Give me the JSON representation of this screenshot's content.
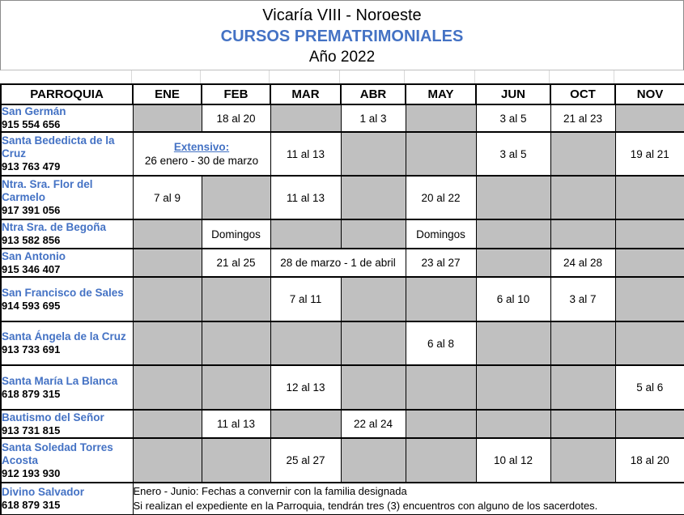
{
  "title": {
    "line1": "Vicaría VIII - Noroeste",
    "line2": "CURSOS PREMATRIMONIALES",
    "line3": "Año 2022"
  },
  "colors": {
    "accent_blue": "#4472C4",
    "empty_cell_gray": "#C0C0C0",
    "grid_black": "#000000"
  },
  "table": {
    "parish_header": "PARROQUIA",
    "months": [
      "ENE",
      "FEB",
      "MAR",
      "ABR",
      "MAY",
      "JUN",
      "OCT",
      "NOV"
    ],
    "rows": [
      {
        "name": "San Germán",
        "phone": "915 554 656",
        "cells": [
          {
            "gray": true
          },
          {
            "text": "18 al 20"
          },
          {
            "gray": true
          },
          {
            "text": "1 al 3"
          },
          {
            "gray": true
          },
          {
            "text": "3 al 5"
          },
          {
            "text": "21 al 23"
          },
          {
            "gray": true
          }
        ]
      },
      {
        "name": "Santa Bededicta de la Cruz",
        "phone": "913 763 479",
        "cells": [
          {
            "span": 2,
            "lines": [
              {
                "text": "Extensivo: ",
                "cls": "ext-l1"
              },
              {
                "text": "26 enero - 30 de marzo",
                "cls": "merge-l2"
              }
            ]
          },
          {
            "text": "11 al 13"
          },
          {
            "gray": true
          },
          {
            "gray": true
          },
          {
            "text": "3 al 5"
          },
          {
            "gray": true
          },
          {
            "text": "19 al 21"
          }
        ]
      },
      {
        "name": "Ntra. Sra. Flor del Carmelo",
        "phone": "917 391 056",
        "cells": [
          {
            "text": "7 al 9"
          },
          {
            "gray": true
          },
          {
            "text": "11 al 13"
          },
          {
            "gray": true
          },
          {
            "text": "20 al 22"
          },
          {
            "gray": true
          },
          {
            "gray": true
          },
          {
            "gray": true
          }
        ]
      },
      {
        "name": "Ntra Sra. de Begoña",
        "phone": "913 582 856",
        "cells": [
          {
            "gray": true
          },
          {
            "text": "Domingos"
          },
          {
            "gray": true
          },
          {
            "gray": true
          },
          {
            "text": "Domingos"
          },
          {
            "gray": true
          },
          {
            "gray": true
          },
          {
            "gray": true
          }
        ]
      },
      {
        "name": "San Antonio",
        "phone": "915 346 407",
        "cells": [
          {
            "gray": true
          },
          {
            "text": "21 al 25"
          },
          {
            "span": 2,
            "text": "28 de marzo - 1 de abril"
          },
          {
            "text": "23 al 27"
          },
          {
            "gray": true
          },
          {
            "text": "24 al 28"
          },
          {
            "gray": true
          }
        ]
      },
      {
        "name": "San Francisco de Sales",
        "phone": "914 593 695",
        "cells": [
          {
            "gray": true
          },
          {
            "gray": true
          },
          {
            "text": "7 al 11"
          },
          {
            "gray": true
          },
          {
            "gray": true
          },
          {
            "text": "6 al 10"
          },
          {
            "text": "3 al 7"
          },
          {
            "gray": true
          }
        ]
      },
      {
        "name": "Santa Ángela de la Cruz",
        "phone": "913 733 691",
        "cells": [
          {
            "gray": true
          },
          {
            "gray": true
          },
          {
            "gray": true
          },
          {
            "gray": true
          },
          {
            "text": "6 al 8"
          },
          {
            "gray": true
          },
          {
            "gray": true
          },
          {
            "gray": true
          }
        ]
      },
      {
        "name": "Santa María La Blanca",
        "phone": "618 879 315",
        "cells": [
          {
            "gray": true
          },
          {
            "gray": true
          },
          {
            "text": "12 al 13"
          },
          {
            "gray": true
          },
          {
            "gray": true
          },
          {
            "gray": true
          },
          {
            "gray": true
          },
          {
            "text": "5 al 6"
          }
        ]
      },
      {
        "name": "Bautismo del Señor",
        "phone": "913 731 815",
        "cells": [
          {
            "gray": true
          },
          {
            "text": "11 al 13"
          },
          {
            "gray": true
          },
          {
            "text": "22 al 24"
          },
          {
            "gray": true
          },
          {
            "gray": true
          },
          {
            "gray": true
          },
          {
            "gray": true
          }
        ]
      },
      {
        "name": "Santa Soledad Torres Acosta",
        "phone": "912 193 930",
        "cells": [
          {
            "gray": true
          },
          {
            "gray": true
          },
          {
            "text": "25 al 27"
          },
          {
            "gray": true
          },
          {
            "gray": true
          },
          {
            "text": "10 al 12"
          },
          {
            "gray": true
          },
          {
            "text": "18 al 20"
          }
        ]
      },
      {
        "name": "Divino Salvador",
        "phone": "618 879 315",
        "note": [
          "Enero - Junio: Fechas a convernir con la familia designada",
          "Si realizan el expediente en la Parroquia, tendrán tres (3) encuentros con alguno de los sacerdotes."
        ]
      }
    ]
  }
}
